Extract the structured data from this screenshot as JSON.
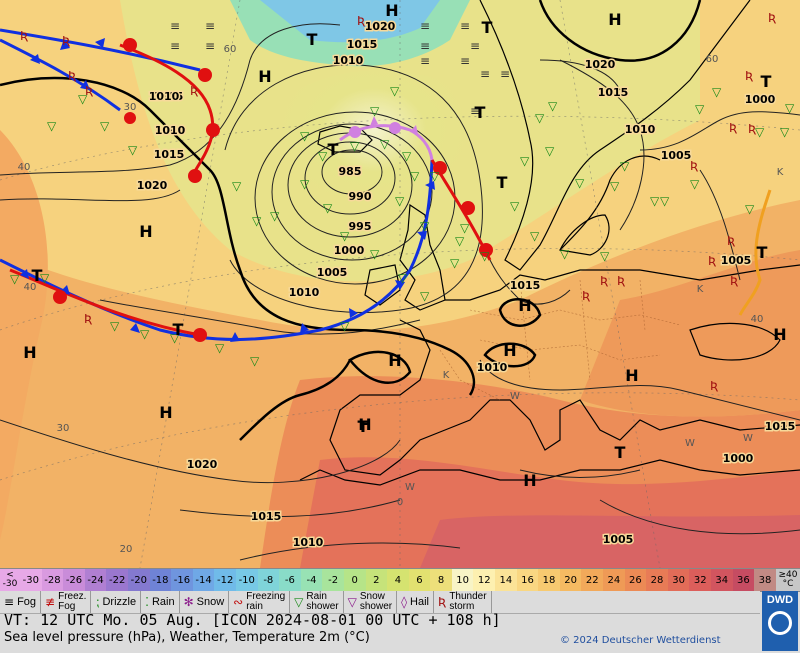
{
  "map": {
    "pressure_centers": [
      {
        "kind": "H",
        "label": "H"
      },
      {
        "kind": "H",
        "label": "H"
      },
      {
        "kind": "H",
        "label": "H"
      },
      {
        "kind": "H",
        "label": "H"
      },
      {
        "kind": "H",
        "label": "H"
      },
      {
        "kind": "H",
        "label": "H"
      },
      {
        "kind": "H",
        "label": "H"
      },
      {
        "kind": "H",
        "label": "H"
      },
      {
        "kind": "H",
        "label": "H"
      },
      {
        "kind": "H",
        "label": "H"
      },
      {
        "kind": "H",
        "label": "H"
      },
      {
        "kind": "H",
        "label": "H"
      },
      {
        "kind": "H",
        "label": "H"
      },
      {
        "kind": "T",
        "label": "T"
      },
      {
        "kind": "T",
        "label": "T"
      },
      {
        "kind": "T",
        "label": "T"
      },
      {
        "kind": "T",
        "label": "T"
      },
      {
        "kind": "T",
        "label": "T"
      },
      {
        "kind": "T",
        "label": "T"
      },
      {
        "kind": "T",
        "label": "T"
      },
      {
        "kind": "T",
        "label": "T"
      },
      {
        "kind": "T",
        "label": "T"
      },
      {
        "kind": "T",
        "label": "T"
      },
      {
        "kind": "T",
        "label": "T"
      }
    ],
    "isobar_labels": [
      "1020",
      "1015",
      "1010",
      "985",
      "990",
      "995",
      "1000",
      "1005",
      "1010",
      "1005",
      "1010",
      "1015",
      "1020",
      "1015",
      "1010",
      "1005",
      "1000",
      "1020",
      "1015",
      "1010",
      "1005",
      "1015",
      "1000",
      "1005",
      "1010",
      "1015",
      "1020",
      "1010"
    ],
    "temperature_labels": [
      "40",
      "30",
      "20",
      "60",
      "60",
      "40",
      "30",
      "0",
      "K",
      "W",
      "W",
      "K",
      "W",
      "W",
      "K",
      "40"
    ],
    "fronts": [
      "cold",
      "warm",
      "occluded",
      "cold",
      "warm"
    ],
    "weather_symbols": {
      "rain": "rain-icon",
      "drizzle": "drizzle-icon",
      "thunderstorm": "thunderstorm-icon",
      "fog": "fog-icon"
    }
  },
  "scale": {
    "first": [
      "<",
      "-30"
    ],
    "values": [
      "-30",
      "-28",
      "-26",
      "-24",
      "-22",
      "-20",
      "-18",
      "-16",
      "-14",
      "-12",
      "-10",
      "-8",
      "-6",
      "-4",
      "-2",
      "0",
      "2",
      "4",
      "6",
      "8",
      "10",
      "12",
      "14",
      "16",
      "18",
      "20",
      "22",
      "24",
      "26",
      "28",
      "30",
      "32",
      "34",
      "36",
      "38"
    ],
    "colors": [
      "#e7a9e7",
      "#d99ae0",
      "#c98cd9",
      "#b07fd2",
      "#9a77cf",
      "#8479cf",
      "#6f83d6",
      "#6f95de",
      "#6fa8e6",
      "#70bbe9",
      "#77c9e6",
      "#7fd4d9",
      "#89dcc8",
      "#98e2b4",
      "#a8e49c",
      "#b6e488",
      "#c6e37a",
      "#d5e370",
      "#e2e170",
      "#eddf7a",
      "#f8f4c6",
      "#fdf0b0",
      "#fbe397",
      "#f9d782",
      "#f7ca70",
      "#f5ba62",
      "#f2a95a",
      "#ef9a56",
      "#ec8a55",
      "#e87b56",
      "#e26c58",
      "#dc5e5b",
      "#d2555f",
      "#c64c62",
      "#c18a84"
    ],
    "last": [
      "≥40",
      "°C"
    ]
  },
  "legend": [
    {
      "icon": "fog-icon",
      "glyph": "≡",
      "label": "Fog",
      "label2": ""
    },
    {
      "icon": "freezing-fog-icon",
      "glyph": "≢",
      "label": "Freez.",
      "label2": "Fog"
    },
    {
      "icon": "drizzle-icon",
      "glyph": "⁏",
      "label": "Drizzle",
      "label2": ""
    },
    {
      "icon": "rain-icon",
      "glyph": "⁚",
      "label": "Rain",
      "label2": ""
    },
    {
      "icon": "snow-icon",
      "glyph": "✻",
      "label": "Snow",
      "label2": ""
    },
    {
      "icon": "freezing-rain-icon",
      "glyph": "∾",
      "label": "Freezing",
      "label2": "rain"
    },
    {
      "icon": "rain-shower-icon",
      "glyph": "▽",
      "label": "Rain",
      "label2": "shower"
    },
    {
      "icon": "snow-shower-icon",
      "glyph": "▽",
      "label": "Snow",
      "label2": "shower"
    },
    {
      "icon": "hail-icon",
      "glyph": "◊",
      "label": "Hail",
      "label2": ""
    },
    {
      "icon": "thunderstorm-icon",
      "glyph": "Ʀ",
      "label": "Thunder",
      "label2": "storm"
    }
  ],
  "footer": {
    "valid_time": "VT: 12 UTC Mo.  05 Aug. [ICON 2024-08-01  00 UTC + 108 h]",
    "description": "Sea level pressure (hPa), Weather, Temperature 2m (°C)",
    "copyright": "© 2024 Deutscher Wetterdienst",
    "logo_text": "DWD"
  },
  "colors": {
    "cold_front": "#1030e0",
    "warm_front": "#e01010",
    "occluded_front": "#d080e0",
    "trough": "#f0a020",
    "coast": "#000000"
  }
}
